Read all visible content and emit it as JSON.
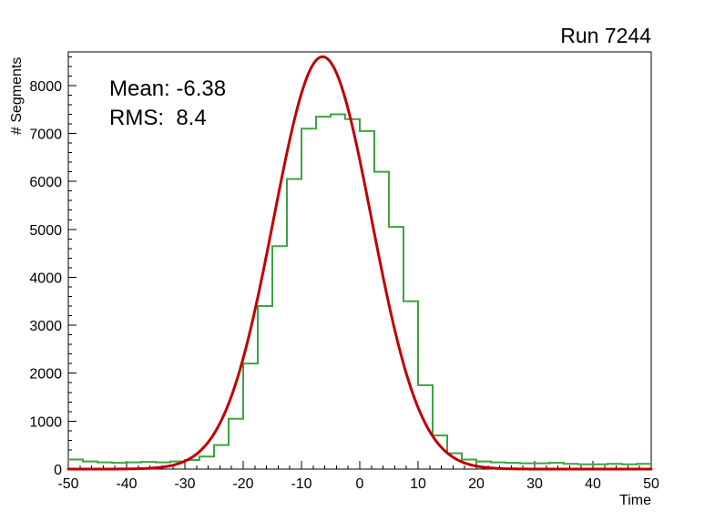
{
  "title": "Run 7244",
  "stats": {
    "mean_label": "Mean: -6.38",
    "rms_label": "RMS:  8.4"
  },
  "chart_data": {
    "type": "bar",
    "subtype": "histogram-with-gaussian-fit",
    "title": "Run 7244",
    "xlabel": "Time",
    "ylabel": "# Segments",
    "xlim": [
      -50,
      50
    ],
    "ylim": [
      0,
      8700
    ],
    "grid": false,
    "legend": false,
    "x_major_ticks": [
      -50,
      -40,
      -30,
      -20,
      -10,
      0,
      10,
      20,
      30,
      40,
      50
    ],
    "x_minor_step": 2,
    "y_major_ticks": [
      0,
      1000,
      2000,
      3000,
      4000,
      5000,
      6000,
      7000,
      8000
    ],
    "y_minor_step": 200,
    "histogram": {
      "name": "time-distribution",
      "color": "#3fa33f",
      "line_width": 2,
      "x_start": -50,
      "bin_width": 2.5,
      "values": [
        200,
        160,
        140,
        130,
        140,
        150,
        140,
        160,
        190,
        260,
        500,
        1050,
        2200,
        3400,
        4650,
        6050,
        7100,
        7350,
        7400,
        7300,
        7050,
        6200,
        5050,
        3500,
        1750,
        700,
        330,
        200,
        160,
        140,
        130,
        120,
        120,
        130,
        110,
        100,
        100,
        110,
        100,
        110
      ]
    },
    "fit": {
      "name": "gaussian-fit",
      "color": "#c00000",
      "line_width": 3,
      "amplitude": 8600,
      "mean": -6.38,
      "sigma": 8.4
    },
    "frame_color": "#000000",
    "tick_color": "#000000",
    "label_color": "#000000"
  }
}
